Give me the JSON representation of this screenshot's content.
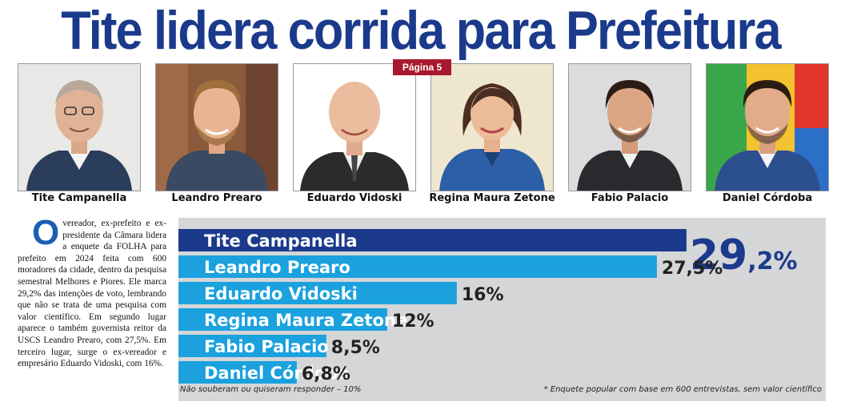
{
  "headline": "Tite lidera corrida para Prefeitura",
  "page_tag": "Página 5",
  "candidates": [
    {
      "name": "Tite Campanella"
    },
    {
      "name": "Leandro Prearo"
    },
    {
      "name": "Eduardo Vidoski"
    },
    {
      "name": "Regina Maura Zetone"
    },
    {
      "name": "Fabio Palacio"
    },
    {
      "name": "Daniel Córdoba"
    }
  ],
  "article": {
    "dropcap": "O",
    "text": "vereador, ex-prefeito e ex-presidente da Câmara lidera a enquete da FOLHA para prefeito em 2024 feita com 600 moradores da cidade, dentro da pesquisa semestral Melhores e Piores. Ele marca 29,2% das intenções de voto, lembrando que não se trata de uma pesquisa com valor científico. Em segundo lugar aparece o também governista reitor da USCS Leandro Prearo, com 27,5%. Em terceiro lugar, surge o ex-vereador e empresário Eduardo Vidoski, com 16%."
  },
  "chart_data": {
    "type": "bar",
    "orientation": "horizontal",
    "categories": [
      "Tite Campanella",
      "Leandro Prearo",
      "Eduardo Vidoski",
      "Regina Maura Zetone",
      "Fabio Palacio",
      "Daniel Córdoba"
    ],
    "values": [
      29.2,
      27.5,
      16,
      12,
      8.5,
      6.8
    ],
    "value_labels": [
      "29,2%",
      "27,5%",
      "16%",
      "12%",
      "8,5%",
      "6,8%"
    ],
    "xlim": [
      0,
      31
    ],
    "grid": false,
    "colors": {
      "leader": "#1b3a8c",
      "others": "#1aa1de",
      "panel": "#d5d6d8"
    }
  },
  "footnotes": {
    "left": "Não souberam ou quiseram responder – 10%",
    "right": "* Enquete popular com base em 600 entrevistas, sem valor científico"
  },
  "colors": {
    "headline": "#1b3a8c",
    "page_tag": "#a7192c",
    "dropcap": "#1b5fb5"
  }
}
